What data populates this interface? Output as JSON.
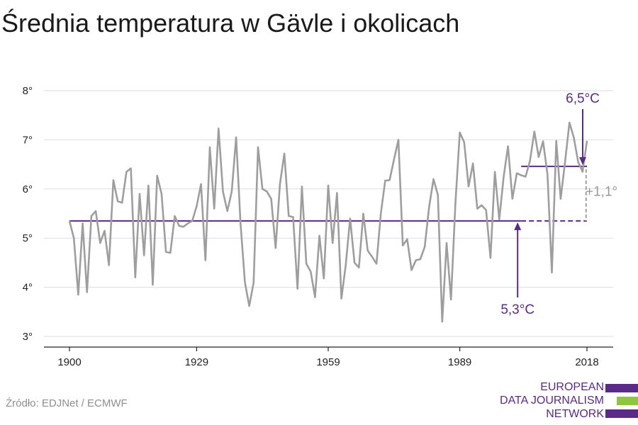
{
  "title": "Średnia temperatura w Gävle i okolicach",
  "source": "Źródło: EDJNet / ECMWF",
  "logo": {
    "lines": [
      "EUROPEAN",
      "DATA JOURNALISM",
      "NETWORK"
    ]
  },
  "colors": {
    "line": "#9e9e9e",
    "accent": "#5a2a86",
    "grid": "#dddddd",
    "logo_green": "#8dc63f"
  },
  "chart_data": {
    "type": "line",
    "title": "Średnia temperatura w Gävle i okolicach",
    "xlabel": "",
    "ylabel": "",
    "xlim": [
      1900,
      2018
    ],
    "ylim": [
      3,
      8
    ],
    "yticks": [
      3,
      4,
      5,
      6,
      7,
      8
    ],
    "ytick_labels": [
      "3°",
      "4°",
      "5°",
      "6°",
      "7°",
      "8°"
    ],
    "xticks": [
      1900,
      1929,
      1959,
      1989,
      2018
    ],
    "xtick_labels": [
      "1900",
      "1929",
      "1959",
      "1989",
      "2018"
    ],
    "grid": true,
    "series": [
      {
        "x": [
          1900,
          1901,
          1902,
          1903,
          1904,
          1905,
          1906,
          1907,
          1908,
          1909,
          1910,
          1911,
          1912,
          1913,
          1914,
          1915,
          1916,
          1917,
          1918,
          1919,
          1920,
          1921,
          1922,
          1923,
          1924,
          1925,
          1926,
          1927,
          1928,
          1929,
          1930,
          1931,
          1932,
          1933,
          1934,
          1935,
          1936,
          1937,
          1938,
          1939,
          1940,
          1941,
          1942,
          1943,
          1944,
          1945,
          1946,
          1947,
          1948,
          1949,
          1950,
          1951,
          1952,
          1953,
          1954,
          1955,
          1956,
          1957,
          1958,
          1959,
          1960,
          1961,
          1962,
          1963,
          1964,
          1965,
          1966,
          1967,
          1968,
          1969,
          1970,
          1971,
          1972,
          1973,
          1974,
          1975,
          1976,
          1977,
          1978,
          1979,
          1980,
          1981,
          1982,
          1983,
          1984,
          1985,
          1986,
          1987,
          1988,
          1989,
          1990,
          1991,
          1992,
          1993,
          1994,
          1995,
          1996,
          1997,
          1998,
          1999,
          2000,
          2001,
          2002,
          2003,
          2004,
          2005,
          2006,
          2007,
          2008,
          2009,
          2010,
          2011,
          2012,
          2013,
          2014,
          2015,
          2016,
          2017,
          2018
        ],
        "values": [
          5.35,
          5.0,
          3.85,
          5.3,
          3.9,
          5.45,
          5.55,
          4.9,
          5.15,
          4.45,
          6.18,
          5.75,
          5.72,
          6.35,
          6.42,
          4.2,
          5.9,
          4.65,
          6.07,
          4.05,
          6.27,
          5.9,
          4.72,
          4.7,
          5.45,
          5.25,
          5.23,
          5.3,
          5.35,
          5.65,
          6.1,
          4.55,
          6.85,
          5.6,
          7.23,
          5.95,
          5.55,
          5.95,
          7.05,
          5.3,
          4.1,
          3.62,
          4.1,
          6.85,
          6.0,
          5.95,
          5.8,
          4.8,
          6.1,
          6.72,
          5.45,
          5.43,
          3.97,
          6.05,
          4.48,
          4.32,
          3.8,
          5.05,
          4.18,
          6.07,
          4.9,
          5.92,
          3.77,
          4.45,
          5.4,
          4.5,
          4.4,
          5.5,
          4.75,
          4.62,
          4.48,
          5.5,
          6.17,
          6.18,
          6.6,
          7.0,
          4.85,
          4.98,
          4.35,
          4.55,
          4.57,
          4.82,
          5.63,
          6.2,
          5.88,
          3.3,
          4.9,
          3.75,
          5.7,
          7.15,
          6.95,
          6.05,
          6.52,
          5.6,
          5.67,
          5.57,
          4.6,
          6.35,
          5.38,
          6.25,
          6.87,
          5.8,
          6.32,
          6.28,
          6.25,
          6.57,
          7.17,
          6.65,
          6.97,
          6.3,
          4.3,
          6.98,
          5.8,
          6.55,
          7.35,
          7.05,
          6.55,
          6.35,
          6.98
        ]
      }
    ],
    "reference_lines": [
      {
        "from": 1900,
        "to": 2003,
        "value": 5.35,
        "style": "solid"
      },
      {
        "from": 2003,
        "to": 2018,
        "value": 5.35,
        "style": "dashed"
      },
      {
        "from": 2003,
        "to": 2018,
        "value": 6.46,
        "style": "solid"
      }
    ],
    "annotations": [
      {
        "text": "6,5°C",
        "x": 2018,
        "y": 6.46
      },
      {
        "text": "5,3°C",
        "x": 2003,
        "y": 5.35
      },
      {
        "text": "+1,1°",
        "x": 2018,
        "y": 5.9
      }
    ]
  }
}
